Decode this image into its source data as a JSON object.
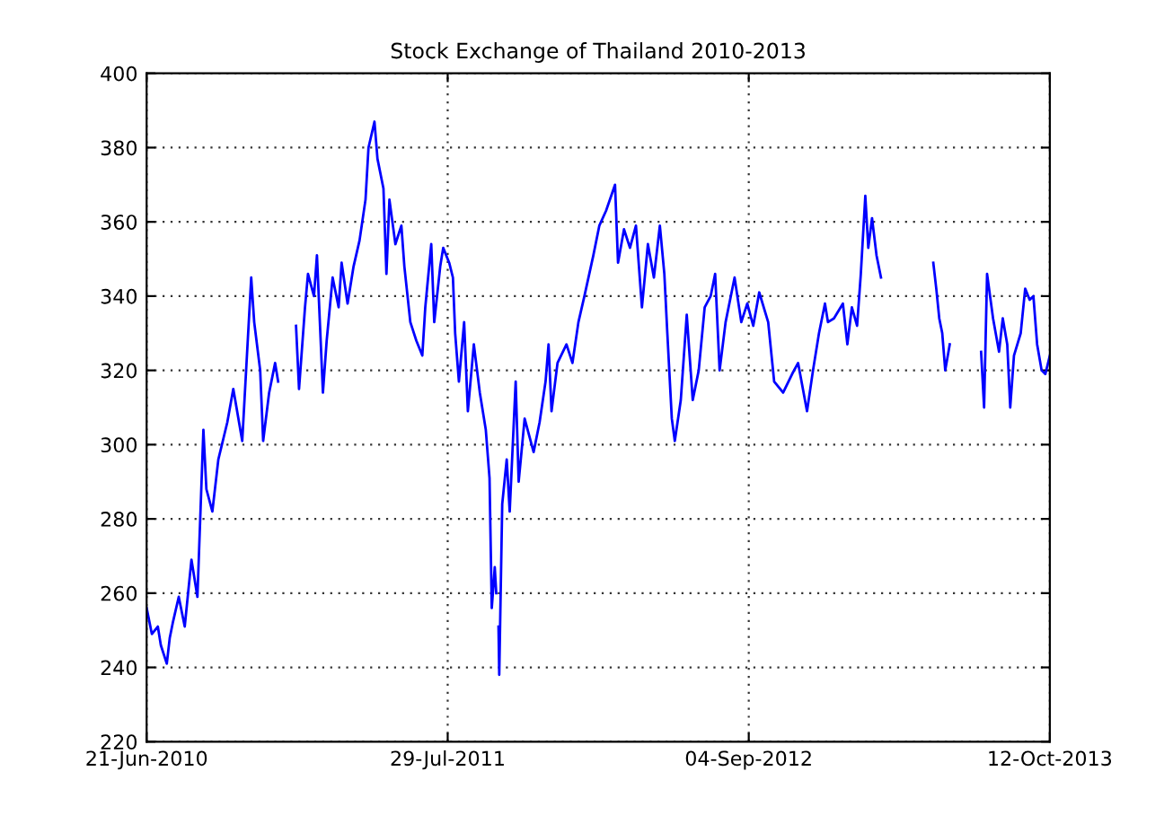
{
  "chart_data": {
    "type": "line",
    "title": "Stock Exchange of Thailand 2010-2013",
    "xlim": [
      "2010-06-21",
      "2013-10-12"
    ],
    "ylim": [
      220,
      400
    ],
    "xticks": [
      {
        "value": "2010-06-21",
        "label": "21-Jun-2010"
      },
      {
        "value": "2011-07-29",
        "label": "29-Jul-2011"
      },
      {
        "value": "2012-09-04",
        "label": "04-Sep-2012"
      },
      {
        "value": "2013-10-12",
        "label": "12-Oct-2013"
      }
    ],
    "yticks": [
      220,
      240,
      260,
      280,
      300,
      320,
      340,
      360,
      380,
      400
    ],
    "grid": true,
    "marker": "none",
    "line_style": "solid",
    "series": [
      {
        "color": "#0000ff",
        "x": [
          "2010-06-21",
          "2010-06-28",
          "2010-07-06",
          "2010-07-10",
          "2010-07-18",
          "2010-07-22",
          "2010-07-26",
          "2010-08-03",
          "2010-08-11",
          "2010-08-20",
          "2010-08-28",
          "2010-09-05",
          "2010-09-09",
          "2010-09-17",
          "2010-09-25",
          "2010-10-07",
          "2010-10-15",
          "2010-10-27",
          "2010-11-08",
          "2010-11-12",
          "2010-11-20",
          "2010-11-24",
          "2010-12-02",
          "2010-12-10",
          "2010-12-14",
          "2010-12-19",
          "2011-01-07",
          "2011-01-11",
          "2011-01-19",
          "2011-01-23",
          "2011-01-31",
          "2011-02-04",
          "2011-02-12",
          "2011-02-17",
          "2011-02-25",
          "2011-03-05",
          "2011-03-09",
          "2011-03-17",
          "2011-03-25",
          "2011-04-02",
          "2011-04-10",
          "2011-04-14",
          "2011-04-22",
          "2011-04-26",
          "2011-05-04",
          "2011-05-08",
          "2011-05-12",
          "2011-05-20",
          "2011-05-28",
          "2011-06-01",
          "2011-06-09",
          "2011-06-17",
          "2011-06-25",
          "2011-06-29",
          "2011-07-07",
          "2011-07-11",
          "2011-07-19",
          "2011-07-23",
          "2011-07-31",
          "2011-08-05",
          "2011-08-08",
          "2011-08-13",
          "2011-08-20",
          "2011-08-25",
          "2011-09-02",
          "2011-09-10",
          "2011-09-18",
          "2011-09-23",
          "2011-09-26",
          "2011-09-30",
          "2011-10-02",
          "2011-10-04",
          "2011-10-05",
          "2011-10-06",
          "2011-10-10",
          "2011-10-16",
          "2011-10-20",
          "2011-10-28",
          "2011-11-01",
          "2011-11-09",
          "2011-11-21",
          "2011-11-29",
          "2011-12-07",
          "2011-12-11",
          "2011-12-15",
          "2011-12-23",
          "2012-01-04",
          "2012-01-12",
          "2012-01-20",
          "2012-01-28",
          "2012-02-09",
          "2012-02-17",
          "2012-02-26",
          "2012-03-09",
          "2012-03-13",
          "2012-03-21",
          "2012-03-29",
          "2012-04-06",
          "2012-04-14",
          "2012-04-22",
          "2012-04-30",
          "2012-05-08",
          "2012-05-14",
          "2012-05-18",
          "2012-05-24",
          "2012-05-28",
          "2012-06-05",
          "2012-06-13",
          "2012-06-21",
          "2012-06-29",
          "2012-07-07",
          "2012-07-15",
          "2012-07-21",
          "2012-07-27",
          "2012-08-04",
          "2012-08-16",
          "2012-08-25",
          "2012-09-02",
          "2012-09-10",
          "2012-09-18",
          "2012-09-30",
          "2012-10-08",
          "2012-10-20",
          "2012-11-01",
          "2012-11-09",
          "2012-11-21",
          "2012-11-29",
          "2012-12-07",
          "2012-12-15",
          "2012-12-19",
          "2012-12-27",
          "2013-01-08",
          "2013-01-14",
          "2013-01-20",
          "2013-01-27",
          "2013-02-01",
          "2013-02-07",
          "2013-02-11",
          "2013-02-16",
          "2013-02-22",
          "2013-02-28",
          "2013-03-26",
          "2013-05-09",
          "2013-05-13",
          "2013-05-17",
          "2013-05-21",
          "2013-05-25",
          "2013-05-31",
          "2013-06-21",
          "2013-07-12",
          "2013-07-16",
          "2013-07-20",
          "2013-07-28",
          "2013-08-05",
          "2013-08-10",
          "2013-08-16",
          "2013-08-20",
          "2013-08-25",
          "2013-09-03",
          "2013-09-09",
          "2013-09-15",
          "2013-09-20",
          "2013-09-25",
          "2013-10-01",
          "2013-10-06",
          "2013-10-12"
        ],
        "values": [
          256,
          249,
          251,
          246,
          241,
          248,
          252,
          259,
          251,
          269,
          259,
          304,
          288,
          282,
          296,
          306,
          315,
          301,
          345,
          333,
          320,
          301,
          314,
          322,
          317,
          null,
          332,
          315,
          337,
          346,
          340,
          351,
          314,
          328,
          345,
          337,
          349,
          338,
          348,
          355,
          366,
          380,
          387,
          377,
          369,
          346,
          366,
          354,
          359,
          348,
          333,
          328,
          324,
          337,
          354,
          333,
          348,
          353,
          349,
          345,
          330,
          317,
          333,
          309,
          327,
          314,
          304,
          291,
          256,
          267,
          260,
          null,
          251,
          238,
          284,
          296,
          282,
          317,
          290,
          307,
          298,
          306,
          317,
          327,
          309,
          322,
          327,
          322,
          333,
          340,
          351,
          359,
          363,
          370,
          349,
          358,
          353,
          359,
          337,
          354,
          345,
          359,
          346,
          330,
          307,
          301,
          312,
          335,
          312,
          320,
          337,
          340,
          346,
          320,
          333,
          345,
          333,
          338,
          332,
          341,
          333,
          317,
          314,
          319,
          322,
          309,
          320,
          330,
          338,
          333,
          334,
          338,
          327,
          337,
          332,
          346,
          367,
          353,
          361,
          351,
          345,
          null,
          349,
          342,
          334,
          330,
          320,
          327,
          null,
          325,
          310,
          346,
          334,
          325,
          334,
          327,
          310,
          324,
          330,
          342,
          339,
          340,
          327,
          320,
          319,
          324
        ]
      }
    ]
  }
}
